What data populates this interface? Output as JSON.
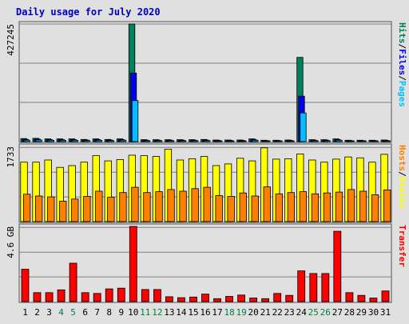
{
  "chart_data": [
    {
      "type": "bar",
      "title": "Daily usage for July 2020",
      "categories": [
        "1",
        "2",
        "3",
        "4",
        "5",
        "6",
        "7",
        "8",
        "9",
        "10",
        "11",
        "12",
        "13",
        "14",
        "15",
        "16",
        "17",
        "18",
        "19",
        "20",
        "21",
        "22",
        "23",
        "24",
        "25",
        "26",
        "27",
        "28",
        "29",
        "30",
        "31"
      ],
      "weekend_categories": [
        "4",
        "5",
        "11",
        "12",
        "18",
        "19",
        "25",
        "26"
      ],
      "y_axis_max_label": "427245",
      "ylim": [
        0,
        427245
      ],
      "grid": true,
      "right_axis_label": {
        "parts": [
          "Hits",
          "/",
          "Files",
          "/",
          "Pages"
        ]
      },
      "series": [
        {
          "name": "Hits",
          "values": [
            11000,
            11900,
            9800,
            9800,
            9800,
            7900,
            9800,
            7900,
            9800,
            427245,
            7000,
            7000,
            7000,
            7000,
            7000,
            7900,
            5900,
            5900,
            5900,
            9800,
            5000,
            5000,
            5900,
            306000,
            7000,
            7000,
            9800,
            5000,
            5000,
            5000,
            5900
          ]
        },
        {
          "name": "Files",
          "values": [
            8000,
            9000,
            7300,
            7300,
            7300,
            5800,
            7300,
            5800,
            7300,
            249000,
            5200,
            5200,
            5200,
            5200,
            5200,
            5800,
            4400,
            4400,
            4400,
            7300,
            3700,
            3700,
            4400,
            165000,
            5200,
            5200,
            7300,
            3700,
            3700,
            3700,
            4400
          ]
        },
        {
          "name": "Pages",
          "values": [
            5200,
            5800,
            4800,
            4800,
            4800,
            3800,
            4800,
            3800,
            4800,
            149000,
            3400,
            3400,
            3400,
            3400,
            3400,
            3800,
            2800,
            2800,
            2800,
            4800,
            2400,
            2400,
            2800,
            104000,
            3400,
            3400,
            4800,
            2400,
            2400,
            2400,
            2800
          ]
        }
      ]
    },
    {
      "type": "bar",
      "categories": [
        "1",
        "2",
        "3",
        "4",
        "5",
        "6",
        "7",
        "8",
        "9",
        "10",
        "11",
        "12",
        "13",
        "14",
        "15",
        "16",
        "17",
        "18",
        "19",
        "20",
        "21",
        "22",
        "23",
        "24",
        "25",
        "26",
        "27",
        "28",
        "29",
        "30",
        "31"
      ],
      "y_axis_max_label": "1733",
      "ylim": [
        0,
        1733
      ],
      "grid": true,
      "right_axis_label": {
        "parts": [
          "Hosts",
          "/",
          "Visits"
        ]
      },
      "series": [
        {
          "name": "Visits",
          "values": [
            1370,
            1370,
            1420,
            1250,
            1290,
            1370,
            1520,
            1400,
            1430,
            1530,
            1520,
            1500,
            1670,
            1420,
            1450,
            1500,
            1290,
            1330,
            1460,
            1400,
            1700,
            1440,
            1450,
            1560,
            1420,
            1370,
            1440,
            1490,
            1470,
            1370,
            1550
          ]
        },
        {
          "name": "Hosts",
          "values": [
            630,
            590,
            570,
            470,
            520,
            580,
            700,
            560,
            670,
            790,
            670,
            690,
            740,
            700,
            760,
            790,
            600,
            580,
            660,
            590,
            800,
            640,
            670,
            690,
            640,
            660,
            680,
            740,
            700,
            620,
            730
          ]
        }
      ]
    },
    {
      "type": "bar",
      "categories": [
        "1",
        "2",
        "3",
        "4",
        "5",
        "6",
        "7",
        "8",
        "9",
        "10",
        "11",
        "12",
        "13",
        "14",
        "15",
        "16",
        "17",
        "18",
        "19",
        "20",
        "21",
        "22",
        "23",
        "24",
        "25",
        "26",
        "27",
        "28",
        "29",
        "30",
        "31"
      ],
      "y_axis_max_label": "4.6 GB",
      "ylim": [
        0,
        4.6
      ],
      "grid": true,
      "right_axis_label": {
        "parts": [
          "Transfer"
        ]
      },
      "series": [
        {
          "name": "Transfer",
          "values": [
            1.98,
            0.55,
            0.55,
            0.72,
            2.35,
            0.55,
            0.5,
            0.78,
            0.82,
            4.6,
            0.74,
            0.74,
            0.3,
            0.24,
            0.28,
            0.46,
            0.18,
            0.32,
            0.4,
            0.22,
            0.18,
            0.5,
            0.38,
            1.88,
            1.72,
            1.72,
            4.3,
            0.55,
            0.38,
            0.22,
            0.65
          ]
        }
      ]
    }
  ],
  "colors": {
    "background": "#e0e0e0",
    "title": "#0000c0",
    "panel_border": "#555555",
    "grid": "#808080",
    "axis_text": "#000000",
    "weekend_text": "#007f3f",
    "Hits": "#00805c",
    "Files": "#0000e6",
    "Pages": "#00c0ff",
    "Visits": "#ffff00",
    "Hosts": "#ff8000",
    "Transfer": "#ff0000",
    "label_slash": "#000000"
  }
}
